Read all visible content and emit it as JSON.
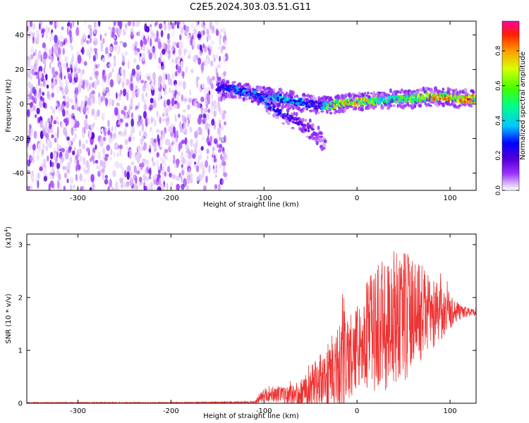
{
  "title": "C2E5.2024.303.03.51.G11",
  "chart_data": [
    {
      "type": "heatmap",
      "panel": "top",
      "description_id": "spectrogram",
      "xlabel": "Height of straight line (km)",
      "ylabel": "Frequency (Hz)",
      "xlim": [
        -355,
        128
      ],
      "ylim": [
        -50,
        48
      ],
      "xticks": [
        -300,
        -200,
        -100,
        0,
        100
      ],
      "yticks": [
        -40,
        -20,
        0,
        20,
        40
      ],
      "xtick_labels": [
        "-300",
        "-200",
        "-100",
        "0",
        "100"
      ],
      "ytick_labels": [
        "-40",
        "-20",
        "0",
        "20",
        "40"
      ],
      "colorbar": {
        "label": "Normalized spectral amplitude",
        "range": [
          0,
          0.97
        ],
        "ticks": [
          0.0,
          0.2,
          0.4,
          0.6,
          0.8
        ],
        "tick_labels": [
          "0.0",
          "0.2",
          "0.4",
          "0.6",
          "0.8"
        ],
        "colors": [
          "#ffffff",
          "#d8b4f8",
          "#9b30ff",
          "#5a00d8",
          "#0000ff",
          "#00c8ff",
          "#00ff88",
          "#40ff00",
          "#d8ff00",
          "#ffa000",
          "#ff2000",
          "#ff00a0"
        ]
      },
      "noise_region": {
        "x_range": [
          -355,
          -140
        ],
        "freq_range": [
          -50,
          48
        ],
        "level": 0.08
      },
      "signal_track": {
        "heights": [
          -150,
          -140,
          -130,
          -120,
          -110,
          -100,
          -90,
          -80,
          -70,
          -60,
          -50,
          -40,
          -30,
          -20,
          -10,
          0,
          10,
          20,
          30,
          40,
          50,
          60,
          70,
          80,
          90,
          100,
          110,
          120,
          128
        ],
        "freq": [
          10,
          9,
          8,
          7,
          6,
          5,
          4,
          3,
          2,
          1,
          0,
          -1,
          -1,
          0,
          1,
          1,
          2,
          2,
          2,
          3,
          3,
          3,
          4,
          4,
          4,
          4,
          3,
          3,
          3
        ],
        "amplitude": [
          0.25,
          0.3,
          0.35,
          0.35,
          0.35,
          0.35,
          0.4,
          0.4,
          0.4,
          0.4,
          0.3,
          0.25,
          0.7,
          0.7,
          0.8,
          0.8,
          0.7,
          0.6,
          0.5,
          0.5,
          0.6,
          0.6,
          0.7,
          0.8,
          0.8,
          0.8,
          0.9,
          0.8,
          0.8
        ]
      },
      "branch_track": {
        "heights": [
          -110,
          -100,
          -90,
          -80,
          -70,
          -60,
          -50,
          -40,
          -35
        ],
        "freq": [
          5,
          2,
          -2,
          -6,
          -9,
          -12,
          -15,
          -19,
          -24
        ],
        "amplitude": [
          0.35,
          0.35,
          0.3,
          0.3,
          0.25,
          0.2,
          0.15,
          0.1,
          0.05
        ]
      }
    },
    {
      "type": "line",
      "panel": "bottom",
      "description_id": "snr",
      "xlabel": "Height of straight line (km)",
      "ylabel": "SNR (10 * v/v)",
      "multiplier_label": "(x10",
      "multiplier_exponent": "4",
      "multiplier_close": ")",
      "xlim": [
        -355,
        128
      ],
      "ylim": [
        0,
        3.2
      ],
      "xticks": [
        -300,
        -200,
        -100,
        0,
        100
      ],
      "yticks": [
        0,
        1,
        2,
        3
      ],
      "xtick_labels": [
        "-300",
        "-200",
        "-100",
        "0",
        "100"
      ],
      "ytick_labels": [
        "0",
        "1",
        "2",
        "3"
      ],
      "line_color": "#ee3333",
      "envelope": {
        "heights": [
          -355,
          -200,
          -110,
          -105,
          -100,
          -90,
          -80,
          -70,
          -60,
          -50,
          -40,
          -30,
          -20,
          -15,
          -10,
          0,
          10,
          20,
          30,
          40,
          50,
          60,
          70,
          80,
          90,
          100,
          110,
          120,
          128
        ],
        "mean": [
          0.01,
          0.01,
          0.02,
          0.1,
          0.15,
          0.2,
          0.15,
          0.15,
          0.2,
          0.3,
          0.45,
          0.55,
          0.75,
          0.95,
          0.8,
          1.1,
          1.3,
          1.4,
          1.5,
          1.6,
          1.7,
          1.7,
          1.7,
          1.7,
          1.7,
          1.75,
          1.72,
          1.72,
          1.72
        ],
        "spread": [
          0.01,
          0.01,
          0.02,
          0.1,
          0.12,
          0.18,
          0.15,
          0.2,
          0.28,
          0.4,
          0.5,
          0.65,
          0.8,
          1.2,
          0.8,
          0.8,
          1.0,
          1.2,
          1.3,
          1.35,
          1.3,
          1.1,
          0.9,
          0.7,
          0.5,
          0.35,
          0.15,
          0.08,
          0.06
        ]
      }
    }
  ]
}
